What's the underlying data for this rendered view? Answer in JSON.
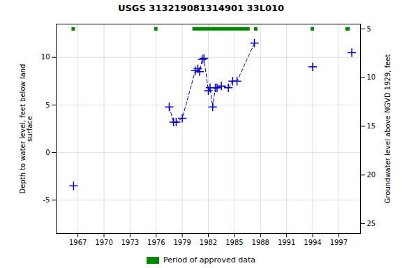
{
  "chart_data": {
    "type": "scatter",
    "title": "USGS 313219081314901 33L010",
    "ylabel": "Depth to water level, feet below land\nsurface",
    "y2label": "Groundwater level above NGVD 1929, feet",
    "x": [
      1966.5,
      1977.5,
      1978.0,
      1978.3,
      1979.0,
      1980.5,
      1980.8,
      1981.0,
      1981.3,
      1981.5,
      1982.0,
      1982.2,
      1982.5,
      1982.8,
      1983.0,
      1983.5,
      1984.3,
      1984.8,
      1985.3,
      1987.3,
      1994.0,
      1998.5
    ],
    "series": [
      {
        "type": "line",
        "line_style": "dashed",
        "color": "#0000CC",
        "values": [
          null,
          4.8,
          3.2,
          3.2,
          3.6,
          8.6,
          8.8,
          8.5,
          9.8,
          9.9,
          6.5,
          6.8,
          4.8,
          6.8,
          6.8,
          7.0,
          6.8,
          7.5,
          7.5,
          11.5,
          null,
          null
        ]
      },
      {
        "type": "scatter",
        "marker": "plus",
        "color": "#0000CC",
        "values": [
          -3.5,
          4.8,
          3.2,
          3.2,
          3.6,
          8.6,
          8.8,
          8.5,
          9.8,
          9.9,
          6.5,
          6.8,
          4.8,
          6.8,
          6.8,
          7.0,
          6.8,
          7.5,
          7.5,
          11.5,
          9.0,
          10.5
        ]
      }
    ],
    "xlim": [
      1964.5,
      1999.5
    ],
    "xticks": [
      1967,
      1970,
      1973,
      1976,
      1979,
      1982,
      1985,
      1988,
      1991,
      1994,
      1997
    ],
    "ylim": [
      -8.5,
      13.5
    ],
    "yticks": [
      -5,
      0,
      5,
      10
    ],
    "y2lim": [
      26.0,
      4.5
    ],
    "y2ticks": [
      25,
      20,
      15,
      10,
      5
    ],
    "grid": true,
    "legend": "bottom",
    "approved_periods": {
      "name": "Period of approved data",
      "color": "#008800",
      "y": 13.0,
      "ranges": [
        [
          1966.3,
          1966.7
        ],
        [
          1975.8,
          1976.2
        ],
        [
          1980.2,
          1986.8
        ],
        [
          1987.3,
          1987.7
        ],
        [
          1993.8,
          1994.2
        ],
        [
          1997.8,
          1998.3
        ]
      ]
    }
  }
}
